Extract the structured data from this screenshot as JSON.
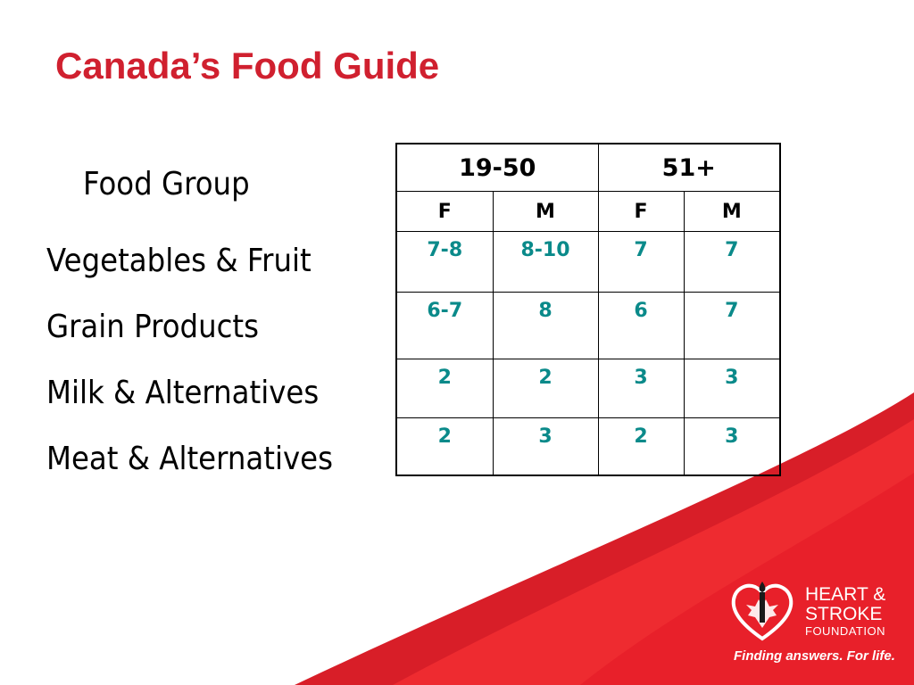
{
  "title": "Canada’s Food Guide",
  "food_group_header": "Food Group",
  "food_groups": [
    "Vegetables & Fruit",
    "Grain Products",
    "Milk & Alternatives",
    "Meat & Alternatives"
  ],
  "age_groups": [
    "19-50",
    "51+"
  ],
  "sex_headers": [
    "F",
    "M",
    "F",
    "M"
  ],
  "servings": [
    [
      "7-8",
      "8-10",
      "7",
      "7"
    ],
    [
      "6-7",
      "8",
      "6",
      "7"
    ],
    [
      "2",
      "2",
      "3",
      "3"
    ],
    [
      "2",
      "3",
      "2",
      "3"
    ]
  ],
  "logo": {
    "line1": "HEART &",
    "line2": "STROKE",
    "line3": "FOUNDATION",
    "tagline": "Finding answers. For life."
  },
  "colors": {
    "title": "#d0202f",
    "values": "#0a8a8a",
    "brand_red": "#e8202a"
  }
}
